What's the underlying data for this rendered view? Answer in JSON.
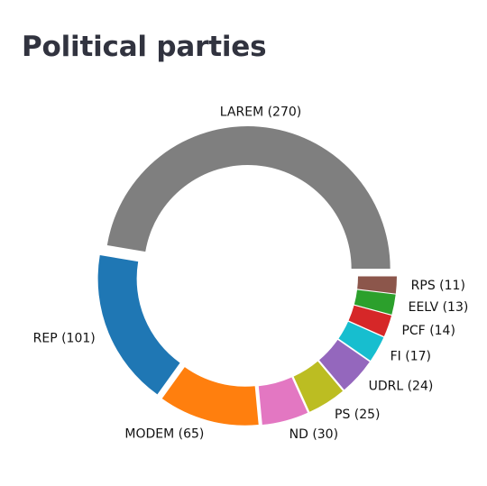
{
  "page": {
    "title": "Political parties"
  },
  "chart_data": {
    "type": "pie",
    "donut": true,
    "exploded": true,
    "title": "Political parties",
    "start_angle_deg": 0,
    "direction": "counterclockwise",
    "label_format": "{name} ({value})",
    "legend": "none",
    "slices": [
      {
        "name": "LAREM",
        "value": 270,
        "color": "#7f7f7f"
      },
      {
        "name": "REP",
        "value": 101,
        "color": "#1f77b4"
      },
      {
        "name": "MODEM",
        "value": 65,
        "color": "#ff7f0e"
      },
      {
        "name": "ND",
        "value": 30,
        "color": "#e377c2"
      },
      {
        "name": "PS",
        "value": 25,
        "color": "#bcbd22"
      },
      {
        "name": "UDRL",
        "value": 24,
        "color": "#9467bd"
      },
      {
        "name": "FI",
        "value": 17,
        "color": "#17becf"
      },
      {
        "name": "PCF",
        "value": 14,
        "color": "#d62728"
      },
      {
        "name": "EELV",
        "value": 13,
        "color": "#2ca02c"
      },
      {
        "name": "RPS",
        "value": 11,
        "color": "#8c564b"
      }
    ]
  }
}
